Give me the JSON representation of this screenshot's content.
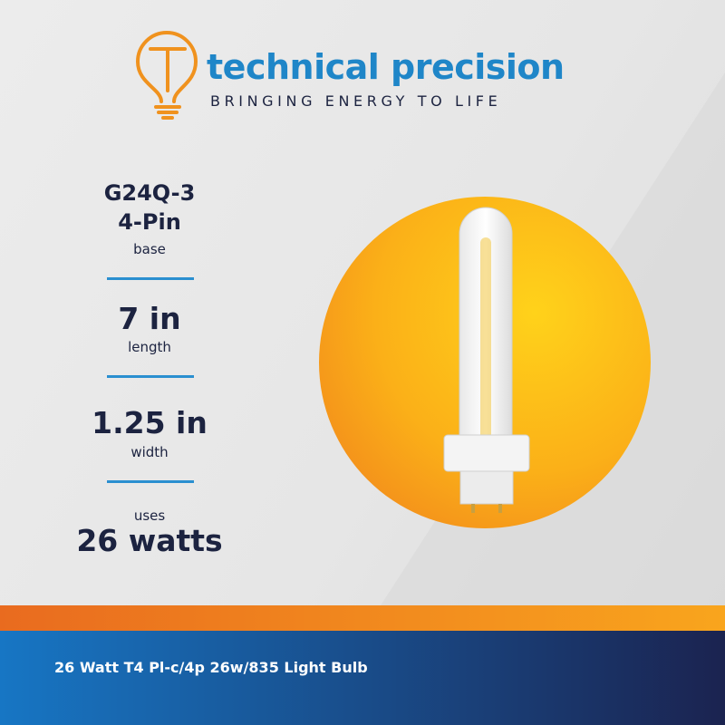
{
  "header": {
    "brand": "technical precision",
    "tagline": "BRINGING ENERGY TO LIFE"
  },
  "specs": [
    {
      "lines": [
        "G24Q-3",
        "4-Pin"
      ],
      "label": "base"
    },
    {
      "lines": [
        "7 in"
      ],
      "label": "length"
    },
    {
      "lines": [
        "1.25 in"
      ],
      "label": "width"
    },
    {
      "prefix": "uses",
      "lines": [
        "26 watts"
      ]
    }
  ],
  "footer": {
    "title": "26 Watt T4 Pl-c/4p 26w/835 Light Bulb"
  }
}
